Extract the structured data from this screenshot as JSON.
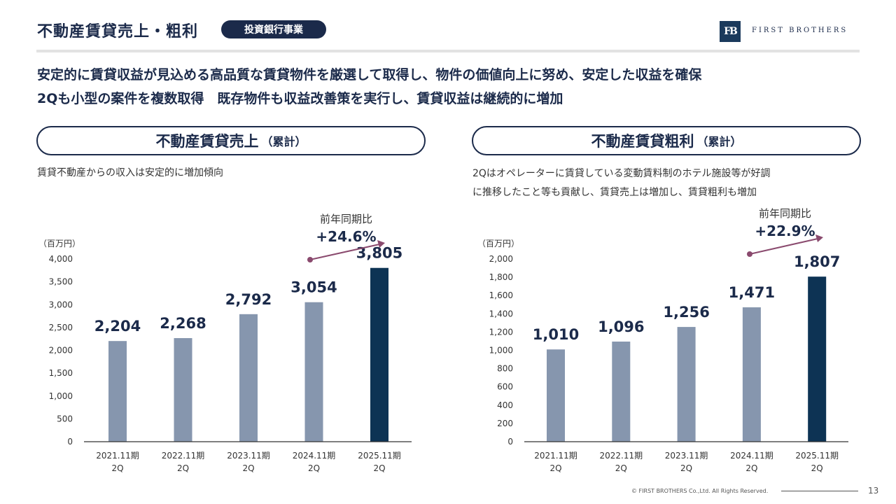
{
  "header": {
    "title": "不動産賃貸売上・粗利",
    "badge": "投資銀行事業",
    "logo_mark": "FB",
    "logo_text": "FIRST BROTHERS"
  },
  "lead": {
    "line1": "安定的に賃貸収益が見込める高品質な賃貸物件を厳選して取得し、物件の価値向上に努め、安定した収益を確保",
    "line2": "2Qも小型の案件を複数取得　既存物件も収益改善策を実行し、賃貸収益は継続的に増加"
  },
  "left_panel": {
    "title": "不動産賃貸売上",
    "title_sub": "（累計）",
    "desc1": "賃貸不動産からの収入は安定的に増加傾向"
  },
  "right_panel": {
    "title": "不動産賃貸粗利",
    "title_sub": "（累計）",
    "desc1": "2Qはオペレーターに賃貸している変動賃料制のホテル施設等が好調",
    "desc2": "に推移したこと等も貢献し、賃貸売上は増加し、賃貸粗利も増加"
  },
  "colors": {
    "bar_past": "#8696ae",
    "bar_current": "#0d3354",
    "arrow": "#8a4a6e",
    "text_dark": "#1b2a4a"
  },
  "chart_data": [
    {
      "type": "bar",
      "unit_label": "（百万円）",
      "categories": [
        [
          "2021.11期",
          "2Q"
        ],
        [
          "2022.11期",
          "2Q"
        ],
        [
          "2023.11期",
          "2Q"
        ],
        [
          "2024.11期",
          "2Q"
        ],
        [
          "2025.11期",
          "2Q"
        ]
      ],
      "values": [
        2204,
        2268,
        2792,
        3054,
        3805
      ],
      "value_labels": [
        "2,204",
        "2,268",
        "2,792",
        "3,054",
        "3,805"
      ],
      "ylim": [
        0,
        4000
      ],
      "yticks": [
        0,
        500,
        1000,
        1500,
        2000,
        2500,
        3000,
        3500,
        4000
      ],
      "ytick_labels": [
        "0",
        "500",
        "1,000",
        "1,500",
        "2,000",
        "2,500",
        "3,000",
        "3,500",
        "4,000"
      ],
      "highlight_index": 4,
      "annotation": {
        "label": "前年同期比",
        "value": "+24.6%"
      }
    },
    {
      "type": "bar",
      "unit_label": "（百万円）",
      "categories": [
        [
          "2021.11期",
          "2Q"
        ],
        [
          "2022.11期",
          "2Q"
        ],
        [
          "2023.11期",
          "2Q"
        ],
        [
          "2024.11期",
          "2Q"
        ],
        [
          "2025.11期",
          "2Q"
        ]
      ],
      "values": [
        1010,
        1096,
        1256,
        1471,
        1807
      ],
      "value_labels": [
        "1,010",
        "1,096",
        "1,256",
        "1,471",
        "1,807"
      ],
      "ylim": [
        0,
        2000
      ],
      "yticks": [
        0,
        200,
        400,
        600,
        800,
        1000,
        1200,
        1400,
        1600,
        1800,
        2000
      ],
      "ytick_labels": [
        "0",
        "200",
        "400",
        "600",
        "800",
        "1,000",
        "1,200",
        "1,400",
        "1,600",
        "1,800",
        "2,000"
      ],
      "highlight_index": 4,
      "annotation": {
        "label": "前年同期比",
        "value": "+22.9%"
      }
    }
  ],
  "footer": {
    "copyright": "© FIRST BROTHERS Co.,Ltd. All Rights Reserved.",
    "page": "13"
  }
}
